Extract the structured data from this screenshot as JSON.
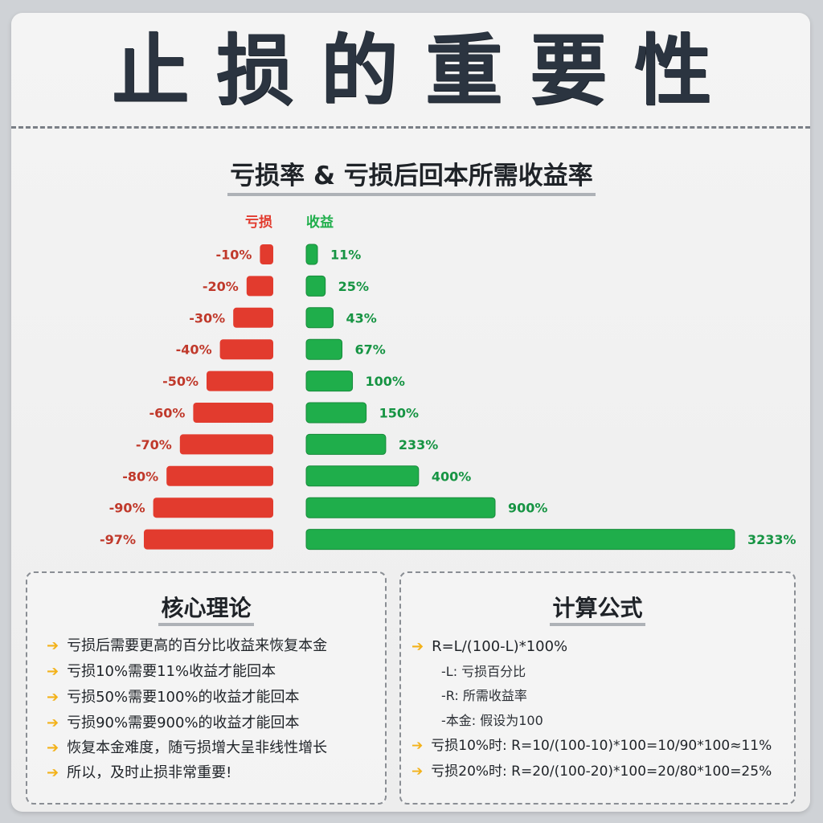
{
  "title": "止损的重要性",
  "subtitle": "亏损率 & 亏损后回本所需收益率",
  "chart_data": {
    "type": "bar",
    "loss_header": "亏损",
    "gain_header": "收益",
    "loss_labels": [
      "-10%",
      "-20%",
      "-30%",
      "-40%",
      "-50%",
      "-60%",
      "-70%",
      "-80%",
      "-90%",
      "-97%"
    ],
    "gain_labels": [
      "11%",
      "25%",
      "43%",
      "67%",
      "100%",
      "150%",
      "233%",
      "400%",
      "900%",
      "3233%"
    ],
    "loss_values": [
      10,
      20,
      30,
      40,
      50,
      60,
      70,
      80,
      90,
      97
    ],
    "gain_values": [
      11,
      25,
      43,
      67,
      100,
      150,
      233,
      400,
      900,
      3233
    ],
    "loss_color": "#e23b2e",
    "gain_color": "#1fae4b"
  },
  "theory": {
    "title": "核心理论",
    "items": [
      "亏损后需要更高的百分比收益来恢复本金",
      "亏损10%需要11%收益才能回本",
      "亏损50%需要100%的收益才能回本",
      "亏损90%需要900%的收益才能回本",
      "恢复本金难度，随亏损增大呈非线性增长",
      "所以，及时止损非常重要!"
    ]
  },
  "formula": {
    "title": "计算公式",
    "main": "R=L/(100-L)*100%",
    "notes": [
      "-L: 亏损百分比",
      "-R: 所需收益率",
      "-本金: 假设为100"
    ],
    "examples": [
      "亏损10%时: R=10/(100-10)*100=10/90*100≈11%",
      "亏损20%时: R=20/(100-20)*100=20/80*100=25%"
    ]
  },
  "arrow_glyph": "➔",
  "colors": {
    "accent_arrow": "#f3b21a",
    "title": "#2b3440"
  }
}
